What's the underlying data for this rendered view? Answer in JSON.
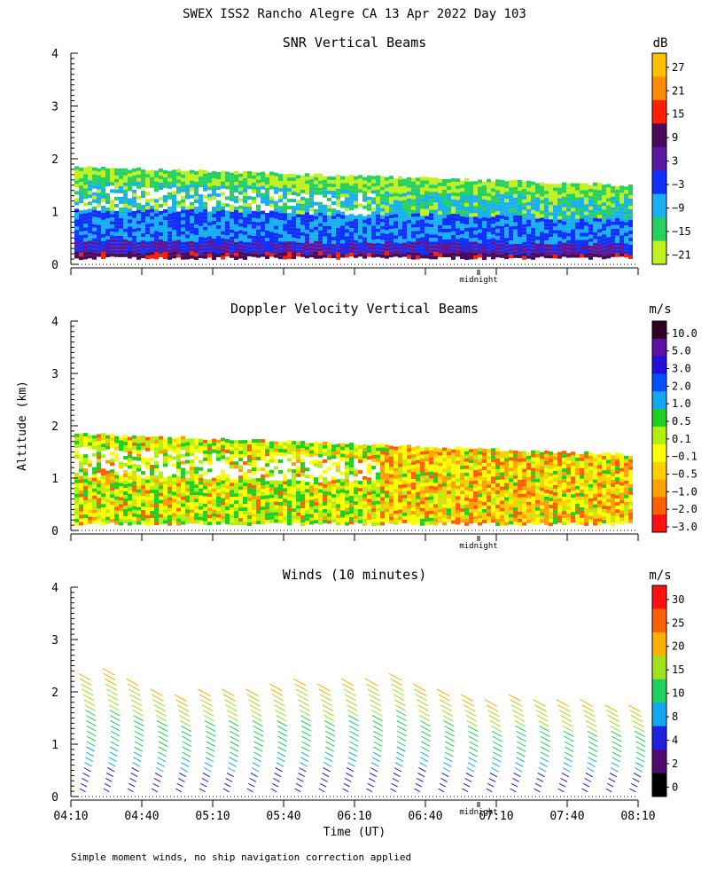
{
  "chart_data": {
    "type": "heatmap",
    "title": "SWEX ISS2 Rancho Alegre CA  13 Apr 2022 Day 103",
    "ylabel": "Altitude (km)",
    "xlabel": "Time (UT)",
    "footnote": "Simple moment winds, no ship navigation correction applied",
    "xticks": [
      "04:10",
      "04:40",
      "05:10",
      "05:40",
      "06:10",
      "06:40",
      "07:10",
      "07:40",
      "08:10"
    ],
    "yticks": [
      "0",
      "1",
      "2",
      "3",
      "4"
    ],
    "ylim": [
      0,
      4
    ],
    "midnight_label": "midnight",
    "panels": [
      {
        "title": "SNR Vertical Beams",
        "unit": "dB",
        "colorbar_labels": [
          "27",
          "21",
          "15",
          "9",
          "3",
          "−3",
          "−9",
          "−15",
          "−21"
        ],
        "colorbar_colors": [
          "#ffc000",
          "#ff8c00",
          "#ff2000",
          "#4a0a5a",
          "#5a18a0",
          "#1030ff",
          "#18b0f0",
          "#28d060",
          "#c0f020"
        ],
        "layer_top_km": [
          1.85,
          1.5
        ]
      },
      {
        "title": "Doppler Velocity Vertical Beams",
        "unit": "m/s",
        "colorbar_labels": [
          "10.0",
          "5.0",
          "3.0",
          "2.0",
          "1.0",
          "0.5",
          "0.1",
          "−0.1",
          "−0.5",
          "−1.0",
          "−2.0",
          "−3.0"
        ],
        "colorbar_colors": [
          "#300020",
          "#5a10a0",
          "#2010e0",
          "#0050ff",
          "#10a8f0",
          "#20d020",
          "#b0f010",
          "#ffff00",
          "#ffd000",
          "#ffa000",
          "#ff6000",
          "#ff1010"
        ],
        "layer_top_km": [
          1.85,
          1.45
        ]
      },
      {
        "title": "Winds (10 minutes)",
        "unit": "m/s",
        "colorbar_labels": [
          "30",
          "25",
          "20",
          "15",
          "10",
          "8",
          "4",
          "2",
          "0"
        ],
        "colorbar_colors": [
          "#ff1010",
          "#ff6000",
          "#ffb000",
          "#a0e020",
          "#20d060",
          "#10a8f0",
          "#2020e0",
          "#500a70",
          "#000000"
        ],
        "profile_top_km": [
          2.4,
          2.5,
          2.3,
          2.1,
          2.0,
          2.1,
          2.1,
          2.1,
          2.2,
          2.3,
          2.2,
          2.3,
          2.3,
          2.4,
          2.2,
          2.1,
          2.0,
          1.9,
          2.0,
          1.95,
          1.9,
          1.9,
          1.85,
          1.8
        ]
      }
    ]
  }
}
